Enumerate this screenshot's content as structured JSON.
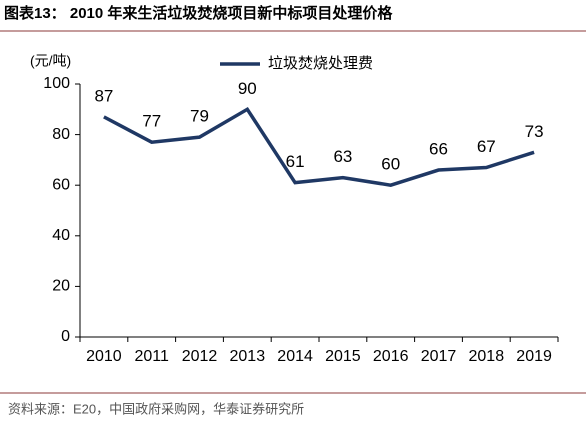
{
  "chart_data": {
    "type": "line",
    "title": "图表13：  2010 年来生活垃圾焚烧项目新中标项目处理价格",
    "y_label": "(元/吨)",
    "categories": [
      "2010",
      "2011",
      "2012",
      "2013",
      "2014",
      "2015",
      "2016",
      "2017",
      "2018",
      "2019"
    ],
    "series": [
      {
        "name": "垃圾焚烧处理费",
        "color": "#1f3864",
        "values": [
          87,
          77,
          79,
          90,
          61,
          63,
          60,
          66,
          67,
          73
        ]
      }
    ],
    "ylim": [
      0,
      100
    ],
    "yticks": [
      0,
      20,
      40,
      60,
      80,
      100
    ],
    "source": "资料来源：E20，中国政府采购网，华泰证券研究所"
  }
}
